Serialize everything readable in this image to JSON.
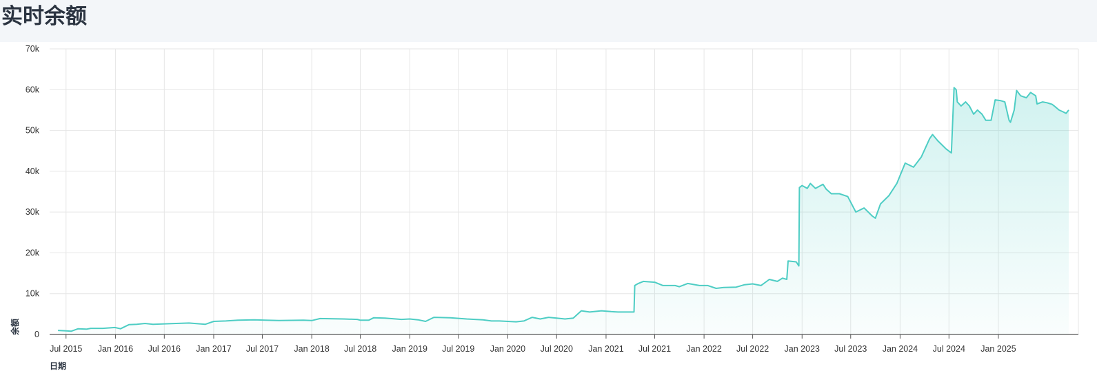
{
  "title": "实时余额",
  "chart_data": {
    "type": "area",
    "title": "实时余额",
    "xlabel": "日期",
    "ylabel": "余额",
    "ylim": [
      0,
      70000
    ],
    "xlim": [
      "2015-05-01",
      "2025-09-20"
    ],
    "grid": true,
    "line_color": "#4ecdc4",
    "fill_color": "#4ecdc4",
    "y_ticks": [
      {
        "value": 0,
        "label": "0"
      },
      {
        "value": 10000,
        "label": "10k"
      },
      {
        "value": 20000,
        "label": "20k"
      },
      {
        "value": 30000,
        "label": "30k"
      },
      {
        "value": 40000,
        "label": "40k"
      },
      {
        "value": 50000,
        "label": "50k"
      },
      {
        "value": 60000,
        "label": "60k"
      },
      {
        "value": 70000,
        "label": "70k"
      }
    ],
    "x_ticks": [
      {
        "date": "2015-07-01",
        "label": "Jul 2015"
      },
      {
        "date": "2016-01-01",
        "label": "Jan 2016"
      },
      {
        "date": "2016-07-01",
        "label": "Jul 2016"
      },
      {
        "date": "2017-01-01",
        "label": "Jan 2017"
      },
      {
        "date": "2017-07-01",
        "label": "Jul 2017"
      },
      {
        "date": "2018-01-01",
        "label": "Jan 2018"
      },
      {
        "date": "2018-07-01",
        "label": "Jul 2018"
      },
      {
        "date": "2019-01-01",
        "label": "Jan 2019"
      },
      {
        "date": "2019-07-01",
        "label": "Jul 2019"
      },
      {
        "date": "2020-01-01",
        "label": "Jan 2020"
      },
      {
        "date": "2020-07-01",
        "label": "Jul 2020"
      },
      {
        "date": "2021-01-01",
        "label": "Jan 2021"
      },
      {
        "date": "2021-07-01",
        "label": "Jul 2021"
      },
      {
        "date": "2022-01-01",
        "label": "Jan 2022"
      },
      {
        "date": "2022-07-01",
        "label": "Jul 2022"
      },
      {
        "date": "2023-01-01",
        "label": "Jan 2023"
      },
      {
        "date": "2023-07-01",
        "label": "Jul 2023"
      },
      {
        "date": "2024-01-01",
        "label": "Jan 2024"
      },
      {
        "date": "2024-07-01",
        "label": "Jul 2024"
      },
      {
        "date": "2025-01-01",
        "label": "Jan 2025"
      }
    ],
    "series": [
      {
        "points": [
          [
            "2015-06-01",
            1000
          ],
          [
            "2015-07-01",
            900
          ],
          [
            "2015-07-20",
            800
          ],
          [
            "2015-08-15",
            1400
          ],
          [
            "2015-09-15",
            1300
          ],
          [
            "2015-10-01",
            1500
          ],
          [
            "2015-11-15",
            1500
          ],
          [
            "2015-12-30",
            1700
          ],
          [
            "2016-01-20",
            1400
          ],
          [
            "2016-02-20",
            2400
          ],
          [
            "2016-03-20",
            2500
          ],
          [
            "2016-04-20",
            2700
          ],
          [
            "2016-05-20",
            2500
          ],
          [
            "2016-07-01",
            2600
          ],
          [
            "2016-08-15",
            2700
          ],
          [
            "2016-10-01",
            2800
          ],
          [
            "2016-12-01",
            2500
          ],
          [
            "2017-01-01",
            3200
          ],
          [
            "2017-02-15",
            3300
          ],
          [
            "2017-04-01",
            3500
          ],
          [
            "2017-06-01",
            3600
          ],
          [
            "2017-09-01",
            3400
          ],
          [
            "2017-12-01",
            3500
          ],
          [
            "2018-01-01",
            3400
          ],
          [
            "2018-02-01",
            3900
          ],
          [
            "2018-05-01",
            3800
          ],
          [
            "2018-06-20",
            3700
          ],
          [
            "2018-07-01",
            3500
          ],
          [
            "2018-08-01",
            3500
          ],
          [
            "2018-08-20",
            4100
          ],
          [
            "2018-10-01",
            4000
          ],
          [
            "2018-12-01",
            3700
          ],
          [
            "2019-01-01",
            3800
          ],
          [
            "2019-02-01",
            3600
          ],
          [
            "2019-03-01",
            3200
          ],
          [
            "2019-04-01",
            4200
          ],
          [
            "2019-06-01",
            4100
          ],
          [
            "2019-08-01",
            3800
          ],
          [
            "2019-10-01",
            3600
          ],
          [
            "2019-11-01",
            3300
          ],
          [
            "2019-12-01",
            3300
          ],
          [
            "2020-01-01",
            3200
          ],
          [
            "2020-02-01",
            3100
          ],
          [
            "2020-03-01",
            3300
          ],
          [
            "2020-04-01",
            4200
          ],
          [
            "2020-05-01",
            3800
          ],
          [
            "2020-06-01",
            4200
          ],
          [
            "2020-07-01",
            4000
          ],
          [
            "2020-08-01",
            3800
          ],
          [
            "2020-09-01",
            4000
          ],
          [
            "2020-10-01",
            5800
          ],
          [
            "2020-11-01",
            5500
          ],
          [
            "2020-12-15",
            5800
          ],
          [
            "2021-01-20",
            5600
          ],
          [
            "2021-02-15",
            5500
          ],
          [
            "2021-03-01",
            5500
          ],
          [
            "2021-04-15",
            5500
          ],
          [
            "2021-04-18",
            12000
          ],
          [
            "2021-05-01",
            12500
          ],
          [
            "2021-05-20",
            13000
          ],
          [
            "2021-07-01",
            12800
          ],
          [
            "2021-08-01",
            12000
          ],
          [
            "2021-09-15",
            12000
          ],
          [
            "2021-10-01",
            11700
          ],
          [
            "2021-11-01",
            12500
          ],
          [
            "2021-12-15",
            12000
          ],
          [
            "2022-01-15",
            12000
          ],
          [
            "2022-02-15",
            11300
          ],
          [
            "2022-03-15",
            11500
          ],
          [
            "2022-05-01",
            11600
          ],
          [
            "2022-06-01",
            12200
          ],
          [
            "2022-07-01",
            12400
          ],
          [
            "2022-08-01",
            12000
          ],
          [
            "2022-09-01",
            13500
          ],
          [
            "2022-10-01",
            13000
          ],
          [
            "2022-10-20",
            13800
          ],
          [
            "2022-11-05",
            13500
          ],
          [
            "2022-11-10",
            18000
          ],
          [
            "2022-12-10",
            17800
          ],
          [
            "2022-12-20",
            16800
          ],
          [
            "2022-12-22",
            36000
          ],
          [
            "2023-01-01",
            36500
          ],
          [
            "2023-01-20",
            35800
          ],
          [
            "2023-02-01",
            37000
          ],
          [
            "2023-02-20",
            35800
          ],
          [
            "2023-03-20",
            36800
          ],
          [
            "2023-04-01",
            35600
          ],
          [
            "2023-04-20",
            34500
          ],
          [
            "2023-05-20",
            34500
          ],
          [
            "2023-06-20",
            33800
          ],
          [
            "2023-07-20",
            30000
          ],
          [
            "2023-08-20",
            31000
          ],
          [
            "2023-09-20",
            29000
          ],
          [
            "2023-10-01",
            28500
          ],
          [
            "2023-10-20",
            32000
          ],
          [
            "2023-11-20",
            34000
          ],
          [
            "2023-12-20",
            37000
          ],
          [
            "2024-01-20",
            42000
          ],
          [
            "2024-02-20",
            41000
          ],
          [
            "2024-03-20",
            43500
          ],
          [
            "2024-04-20",
            48000
          ],
          [
            "2024-05-01",
            49000
          ],
          [
            "2024-05-20",
            47500
          ],
          [
            "2024-06-20",
            45500
          ],
          [
            "2024-07-10",
            44500
          ],
          [
            "2024-07-20",
            60500
          ],
          [
            "2024-07-28",
            60000
          ],
          [
            "2024-08-01",
            57000
          ],
          [
            "2024-08-15",
            56000
          ],
          [
            "2024-09-01",
            57000
          ],
          [
            "2024-09-15",
            56000
          ],
          [
            "2024-10-01",
            54000
          ],
          [
            "2024-10-15",
            55000
          ],
          [
            "2024-11-01",
            54000
          ],
          [
            "2024-11-15",
            52500
          ],
          [
            "2024-12-05",
            52500
          ],
          [
            "2024-12-20",
            57500
          ],
          [
            "2025-01-10",
            57300
          ],
          [
            "2025-01-25",
            57000
          ],
          [
            "2025-02-10",
            52500
          ],
          [
            "2025-02-15",
            52000
          ],
          [
            "2025-03-01",
            55000
          ],
          [
            "2025-03-10",
            59800
          ],
          [
            "2025-03-25",
            58500
          ],
          [
            "2025-04-15",
            58000
          ],
          [
            "2025-05-01",
            59300
          ],
          [
            "2025-05-20",
            58500
          ],
          [
            "2025-05-25",
            56500
          ],
          [
            "2025-06-15",
            57000
          ],
          [
            "2025-07-01",
            56800
          ],
          [
            "2025-07-20",
            56400
          ],
          [
            "2025-08-01",
            55800
          ],
          [
            "2025-08-15",
            55000
          ],
          [
            "2025-09-01",
            54500
          ],
          [
            "2025-09-10",
            54200
          ],
          [
            "2025-09-20",
            55000
          ]
        ]
      }
    ]
  }
}
